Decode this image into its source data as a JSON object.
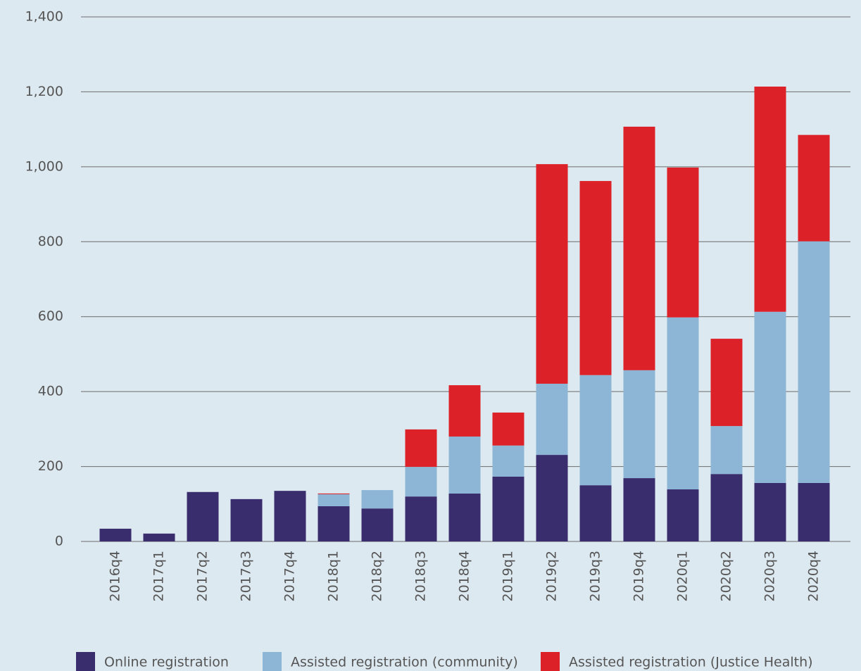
{
  "chart_data": {
    "type": "stacked_bar",
    "categories": [
      "2016q4",
      "2017q1",
      "2017q2",
      "2017q3",
      "2017q4",
      "2018q1",
      "2018q2",
      "2018q3",
      "2018q4",
      "2019q1",
      "2019q2",
      "2019q3",
      "2019q4",
      "2020q1",
      "2020q2",
      "2020q3",
      "2020q4"
    ],
    "series": [
      {
        "name": "Online registration",
        "color": "#3a2d6e",
        "values": [
          34,
          21,
          132,
          113,
          135,
          94,
          88,
          120,
          128,
          173,
          231,
          150,
          169,
          139,
          180,
          156,
          156
        ]
      },
      {
        "name": "Assisted registration (community)",
        "color": "#8db6d6",
        "values": [
          0,
          0,
          0,
          0,
          0,
          32,
          49,
          79,
          152,
          83,
          190,
          294,
          288,
          459,
          128,
          457,
          645
        ]
      },
      {
        "name": "Assisted registration (Justice Health)",
        "color": "#dc2128",
        "values": [
          0,
          0,
          0,
          0,
          0,
          2,
          0,
          100,
          137,
          88,
          586,
          518,
          650,
          400,
          233,
          601,
          284
        ]
      }
    ],
    "ylim": [
      0,
      1400
    ],
    "yticks": [
      0,
      200,
      400,
      600,
      800,
      {
        "value": 1000,
        "label": "1,000"
      },
      {
        "value": 1200,
        "label": "1,200"
      },
      {
        "value": 1400,
        "label": "1,400"
      }
    ],
    "grid": true
  }
}
